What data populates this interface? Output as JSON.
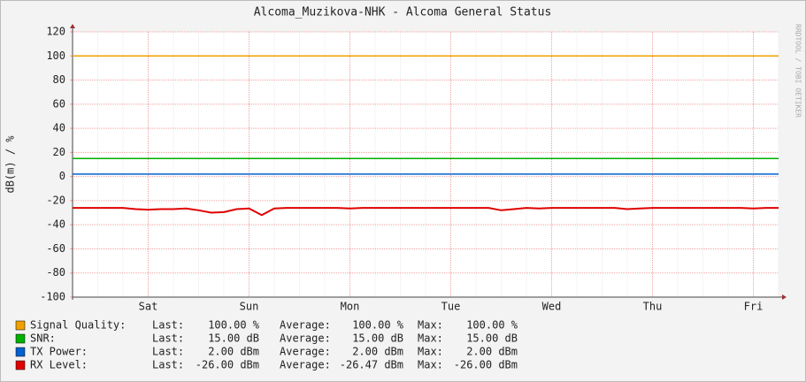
{
  "chart_data": {
    "type": "line",
    "title": "Alcoma_Muzikova-NHK - Alcoma General Status",
    "y_label": "dB(m) / %",
    "watermark": "RRDTOOL / TOBI OETIKER",
    "categories": [
      null,
      null,
      null,
      null,
      null,
      null,
      "Sat",
      null,
      null,
      null,
      null,
      null,
      null,
      null,
      "Sun",
      null,
      null,
      null,
      null,
      null,
      null,
      null,
      "Mon",
      null,
      null,
      null,
      null,
      null,
      null,
      null,
      "Tue",
      null,
      null,
      null,
      null,
      null,
      null,
      null,
      "Wed",
      null,
      null,
      null,
      null,
      null,
      null,
      null,
      "Thu",
      null,
      null,
      null,
      null,
      null,
      null,
      null,
      "Fri",
      null,
      null
    ],
    "ylim": [
      -100,
      120
    ],
    "yticks": [
      -100,
      -80,
      -60,
      -40,
      -20,
      0,
      20,
      40,
      60,
      80,
      100,
      120
    ],
    "grid": true,
    "legend_labels": {
      "last": "Last:",
      "average": "Average:",
      "max": "Max:"
    },
    "series": [
      {
        "name": "Signal Quality:",
        "color": "#f0a000",
        "last": "100.00 %",
        "average": "100.00 %",
        "max": "100.00 %",
        "values": [
          100,
          100,
          100,
          100,
          100,
          100,
          100,
          100,
          100,
          100,
          100,
          100,
          100,
          100,
          100,
          100,
          100,
          100,
          100,
          100,
          100,
          100,
          100,
          100,
          100,
          100,
          100,
          100,
          100,
          100,
          100,
          100,
          100,
          100,
          100,
          100,
          100,
          100,
          100,
          100,
          100,
          100,
          100,
          100,
          100,
          100,
          100,
          100,
          100,
          100,
          100,
          100,
          100,
          100,
          100,
          100,
          100
        ]
      },
      {
        "name": "SNR:",
        "color": "#00b000",
        "last": "15.00 dB",
        "average": "15.00 dB",
        "max": "15.00 dB",
        "values": [
          15,
          15,
          15,
          15,
          15,
          15,
          15,
          15,
          15,
          15,
          15,
          15,
          15,
          15,
          15,
          15,
          15,
          15,
          15,
          15,
          15,
          15,
          15,
          15,
          15,
          15,
          15,
          15,
          15,
          15,
          15,
          15,
          15,
          15,
          15,
          15,
          15,
          15,
          15,
          15,
          15,
          15,
          15,
          15,
          15,
          15,
          15,
          15,
          15,
          15,
          15,
          15,
          15,
          15,
          15,
          15,
          15
        ]
      },
      {
        "name": "TX Power:",
        "color": "#0060d0",
        "last": "2.00 dBm",
        "average": "2.00 dBm",
        "max": "2.00 dBm",
        "values": [
          2,
          2,
          2,
          2,
          2,
          2,
          2,
          2,
          2,
          2,
          2,
          2,
          2,
          2,
          2,
          2,
          2,
          2,
          2,
          2,
          2,
          2,
          2,
          2,
          2,
          2,
          2,
          2,
          2,
          2,
          2,
          2,
          2,
          2,
          2,
          2,
          2,
          2,
          2,
          2,
          2,
          2,
          2,
          2,
          2,
          2,
          2,
          2,
          2,
          2,
          2,
          2,
          2,
          2,
          2,
          2,
          2
        ]
      },
      {
        "name": "RX Level:",
        "color": "#e00000",
        "last": "-26.00 dBm",
        "average": "-26.47 dBm",
        "max": "-26.00 dBm",
        "values": [
          -26,
          -26,
          -26,
          -26,
          -26,
          -27,
          -27.5,
          -27,
          -27,
          -26.5,
          -28,
          -30,
          -29.5,
          -27,
          -26.5,
          -32,
          -26.5,
          -26,
          -26,
          -26,
          -26,
          -26,
          -26.5,
          -26,
          -26,
          -26,
          -26,
          -26,
          -26,
          -26,
          -26,
          -26,
          -26,
          -26,
          -28,
          -27,
          -26,
          -26.5,
          -26,
          -26,
          -26,
          -26,
          -26,
          -26,
          -27,
          -26.5,
          -26,
          -26,
          -26,
          -26,
          -26,
          -26,
          -26,
          -26,
          -26.5,
          -26,
          -26
        ]
      }
    ]
  }
}
